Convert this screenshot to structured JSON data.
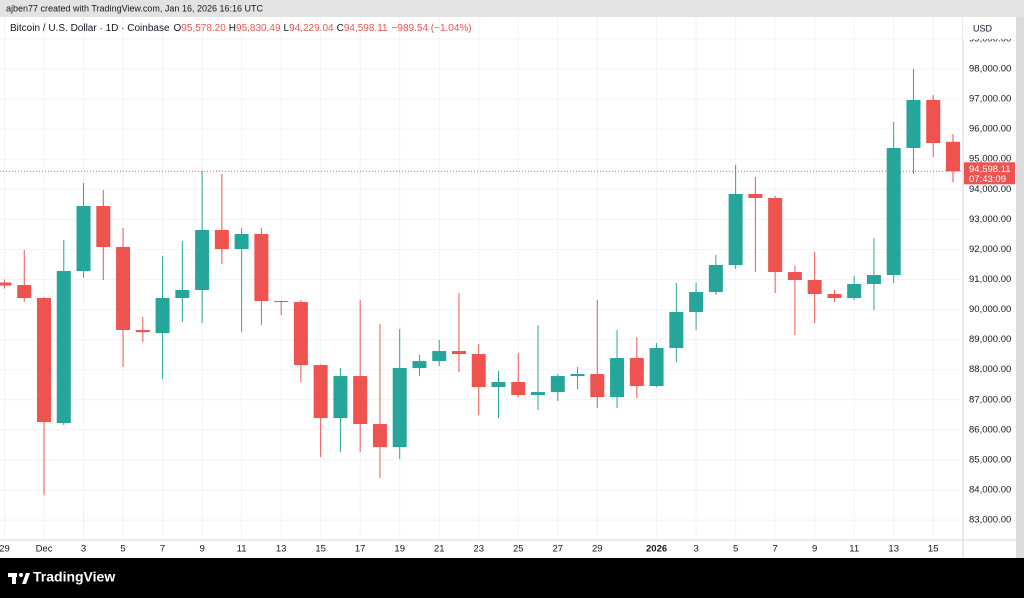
{
  "header": {
    "credit": "ajben77 created with TradingView.com, Jan 16, 2026 16:16 UTC"
  },
  "footer": {
    "brand": "TradingView"
  },
  "chart_data": {
    "type": "candlestick",
    "title": "Bitcoin / U.S. Dollar · 1D · Coinbase",
    "legend_values": [
      {
        "key": "O",
        "text": "95,578.20"
      },
      {
        "key": "H",
        "text": "95,830.49"
      },
      {
        "key": "L",
        "text": "94,229.04"
      },
      {
        "key": "C",
        "text": "94,598.11"
      }
    ],
    "change": "−989.54 (−1.04%)",
    "currency": "USD",
    "categories": [
      "29",
      null,
      "Dec",
      null,
      "3",
      null,
      "5",
      null,
      "7",
      null,
      "9",
      null,
      "11",
      null,
      "13",
      null,
      "15",
      null,
      "17",
      null,
      "19",
      null,
      "21",
      null,
      "23",
      null,
      "25",
      null,
      "27",
      null,
      "29",
      null,
      null,
      "2026",
      null,
      "3",
      null,
      "5",
      null,
      "7",
      null,
      "9",
      null,
      "11",
      null,
      "13",
      null,
      "15",
      null
    ],
    "open": [
      90900,
      90816,
      90384,
      86226,
      91282,
      93443,
      92080,
      89319,
      89219,
      90384,
      90650,
      92645,
      92013,
      92512,
      90284,
      90250,
      88155,
      86392,
      87789,
      86193,
      85428,
      88056,
      88288,
      88621,
      88521,
      87423,
      87590,
      87157,
      87257,
      87789,
      87856,
      87090,
      88388,
      87457,
      88721,
      89918,
      90583,
      91482,
      93843,
      93710,
      91248,
      90983,
      90517,
      90384,
      90850,
      91149,
      95372,
      96969,
      95578.2
    ],
    "high": [
      91000,
      91980,
      90420,
      92313,
      94208,
      93975,
      92712,
      89752,
      91780,
      92280,
      94607,
      94508,
      92712,
      92712,
      90300,
      90320,
      88180,
      88056,
      90320,
      89518,
      89352,
      88488,
      88986,
      90550,
      88854,
      87956,
      88554,
      89485,
      87856,
      88089,
      90320,
      89319,
      89086,
      88887,
      90883,
      90883,
      91814,
      94807,
      94408,
      93776,
      91448,
      91914,
      90650,
      91116,
      92380,
      96237,
      98000,
      97135,
      95830.49
    ],
    "low": [
      90700,
      90250,
      83830,
      86160,
      91049,
      90983,
      88088,
      88920,
      87690,
      89585,
      89550,
      91514,
      89252,
      89485,
      89818,
      87590,
      85095,
      85262,
      85262,
      84397,
      85029,
      87789,
      88122,
      87922,
      86492,
      86393,
      87090,
      86658,
      86958,
      87357,
      86725,
      86725,
      87057,
      87423,
      88255,
      89319,
      90483,
      91348,
      91248,
      90550,
      89153,
      89552,
      90250,
      90317,
      89984,
      90883,
      94508,
      95073,
      94229.04
    ],
    "close": [
      90800,
      90384,
      86259,
      91282,
      93443,
      92080,
      89319,
      89250,
      90384,
      90650,
      92645,
      92013,
      92512,
      90284,
      90250,
      88155,
      86392,
      87789,
      86193,
      85428,
      88056,
      88288,
      88621,
      88521,
      87423,
      87590,
      87157,
      87257,
      87789,
      87856,
      87090,
      88388,
      87457,
      88721,
      89918,
      90583,
      91482,
      93843,
      93710,
      91248,
      90983,
      90517,
      90384,
      90850,
      91149,
      95372,
      96969,
      95539,
      94598.11
    ],
    "up_color": "#26a69a",
    "down_color": "#ef5350",
    "ylim": [
      82337,
      99729
    ],
    "yticks": [
      {
        "value": 83000,
        "label": "83,000.00"
      },
      {
        "value": 84000,
        "label": "84,000.00"
      },
      {
        "value": 85000,
        "label": "85,000.00"
      },
      {
        "value": 86000,
        "label": "86,000.00"
      },
      {
        "value": 87000,
        "label": "87,000.00"
      },
      {
        "value": 88000,
        "label": "88,000.00"
      },
      {
        "value": 89000,
        "label": "89,000.00"
      },
      {
        "value": 90000,
        "label": "90,000.00"
      },
      {
        "value": 91000,
        "label": "91,000.00"
      },
      {
        "value": 92000,
        "label": "92,000.00"
      },
      {
        "value": 93000,
        "label": "93,000.00"
      },
      {
        "value": 94000,
        "label": "94,000.00"
      },
      {
        "value": 95000,
        "label": "95,000.00"
      },
      {
        "value": 96000,
        "label": "96,000.00"
      },
      {
        "value": 97000,
        "label": "97,000.00"
      },
      {
        "value": 98000,
        "label": "98,000.00"
      },
      {
        "value": 99000,
        "label": "99,000.00"
      }
    ],
    "last_price": {
      "value": 94598.11,
      "label": "94,598.11",
      "countdown": "07:43:09"
    },
    "grid": true
  }
}
